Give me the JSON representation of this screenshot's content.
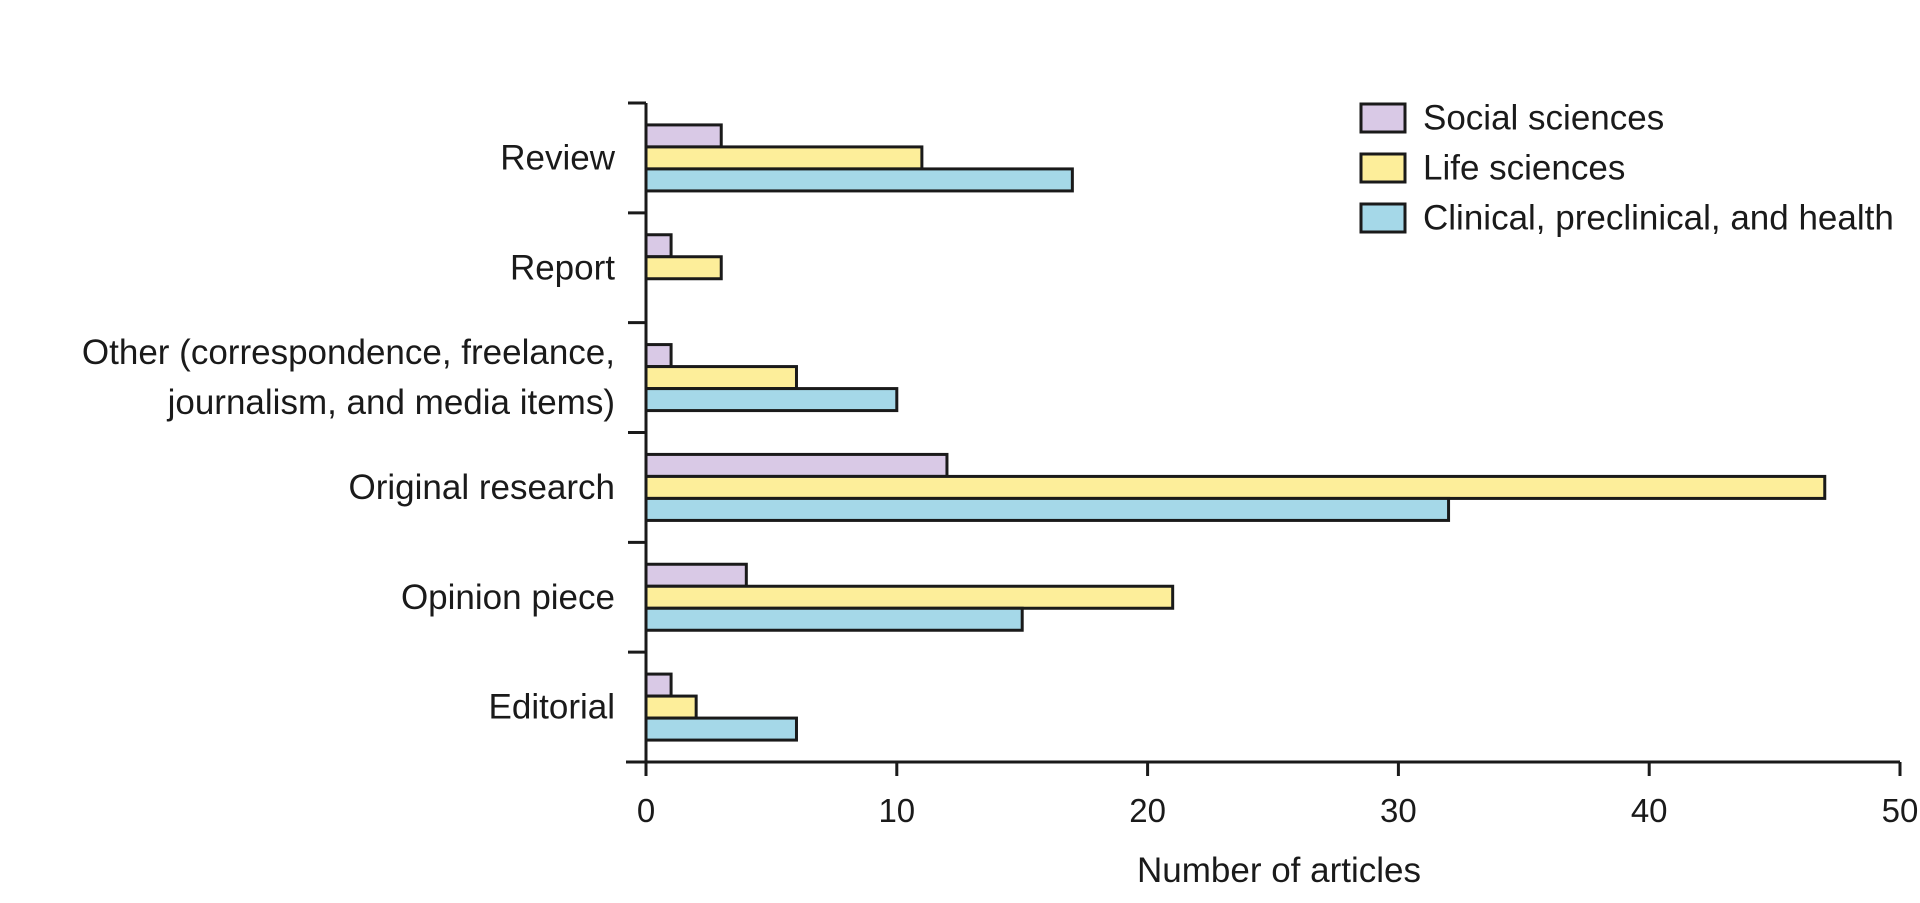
{
  "chart_data": {
    "type": "bar",
    "orientation": "horizontal",
    "categories": [
      "Review",
      "Report",
      "Other (correspondence, freelance, journalism, and media items)",
      "Original research",
      "Opinion piece",
      "Editorial"
    ],
    "category_label_lines": [
      [
        "Review"
      ],
      [
        "Report"
      ],
      [
        "Other (correspondence, freelance,",
        "journalism, and media items)"
      ],
      [
        "Original research"
      ],
      [
        "Opinion piece"
      ],
      [
        "Editorial"
      ]
    ],
    "series": [
      {
        "name": "Social sciences",
        "color": "#d9c9e6",
        "values": [
          3,
          1,
          1,
          12,
          4,
          1
        ]
      },
      {
        "name": "Life sciences",
        "color": "#fdee9a",
        "values": [
          11,
          3,
          6,
          47,
          21,
          2
        ]
      },
      {
        "name": "Clinical, preclinical, and health",
        "color": "#a5d8e8",
        "values": [
          17,
          0,
          10,
          32,
          15,
          6
        ]
      }
    ],
    "xlabel": "Number of articles",
    "ylabel": "",
    "title": "",
    "xlim": [
      0,
      50
    ],
    "xticks": [
      0,
      10,
      20,
      30,
      40,
      50
    ],
    "grid": false,
    "legend_position": "top-right"
  }
}
